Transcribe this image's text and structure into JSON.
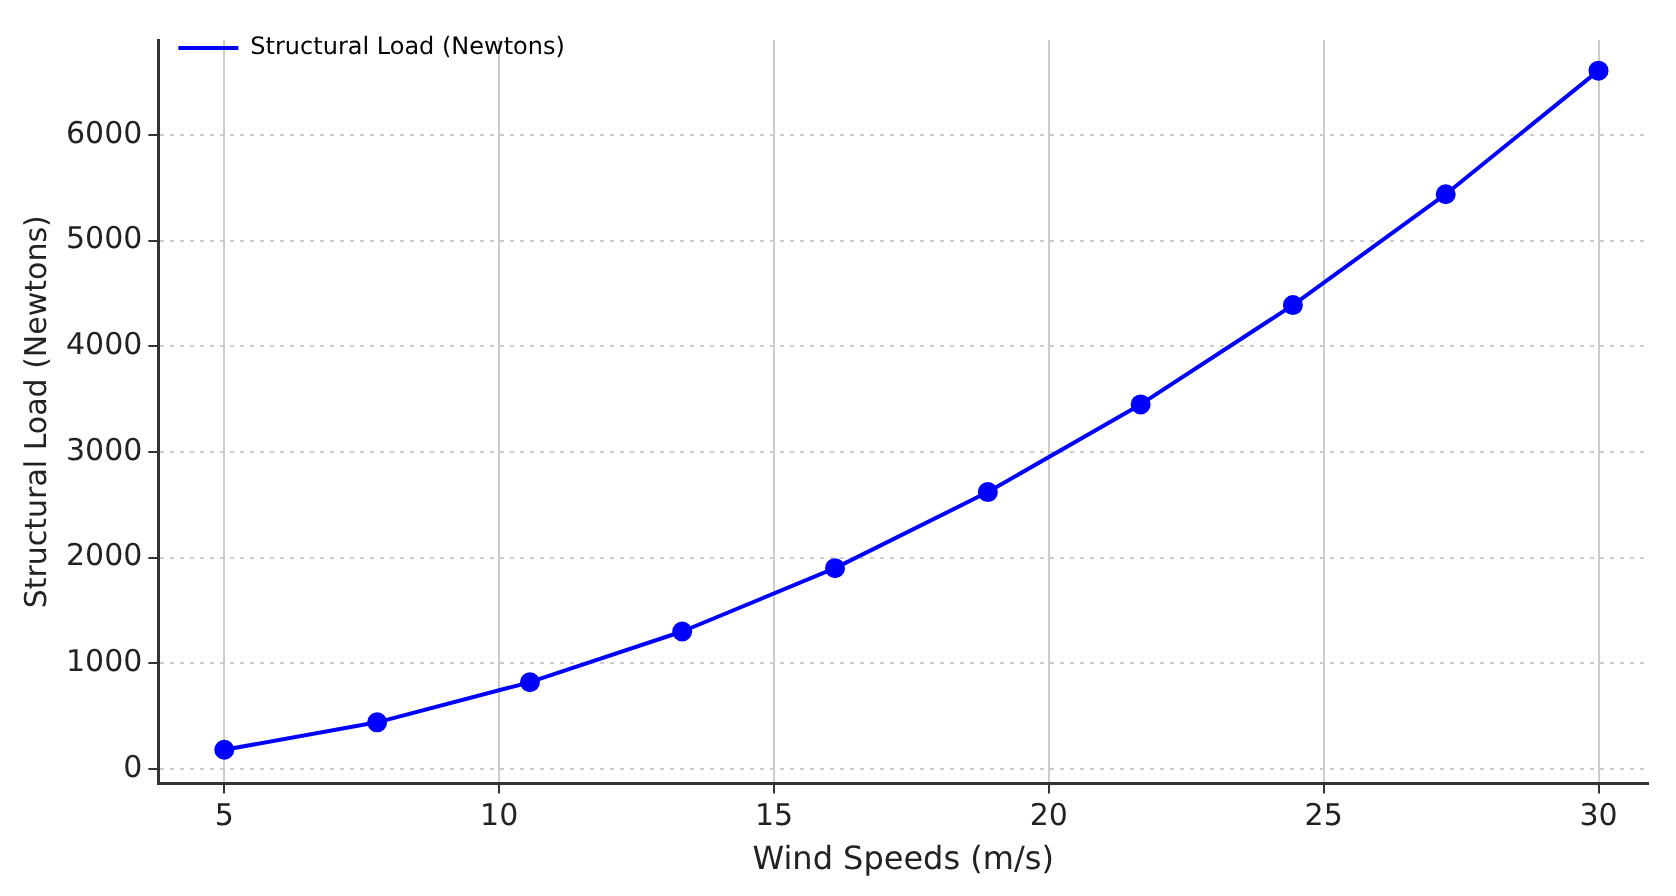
{
  "chart_data": {
    "type": "line",
    "xlabel": "Wind Speeds (m/s)",
    "ylabel": "Structural Load (Newtons)",
    "x": [
      5,
      7.78,
      10.56,
      13.33,
      16.11,
      18.89,
      21.67,
      24.44,
      27.22,
      30
    ],
    "series": [
      {
        "name": "Structural Load (Newtons)",
        "color": "#0000ff",
        "values": [
          180,
          440,
          820,
          1300,
          1900,
          2620,
          3450,
          4390,
          5440,
          6610
        ]
      }
    ],
    "xlim": [
      3.8,
      30.9
    ],
    "ylim": [
      -140,
      6900
    ],
    "xticks": [
      5,
      10,
      15,
      20,
      25,
      30
    ],
    "yticks": [
      0,
      1000,
      2000,
      3000,
      4000,
      5000,
      6000
    ],
    "grid": true,
    "legend": "top left",
    "marker": "circle",
    "line_style": "solid"
  }
}
